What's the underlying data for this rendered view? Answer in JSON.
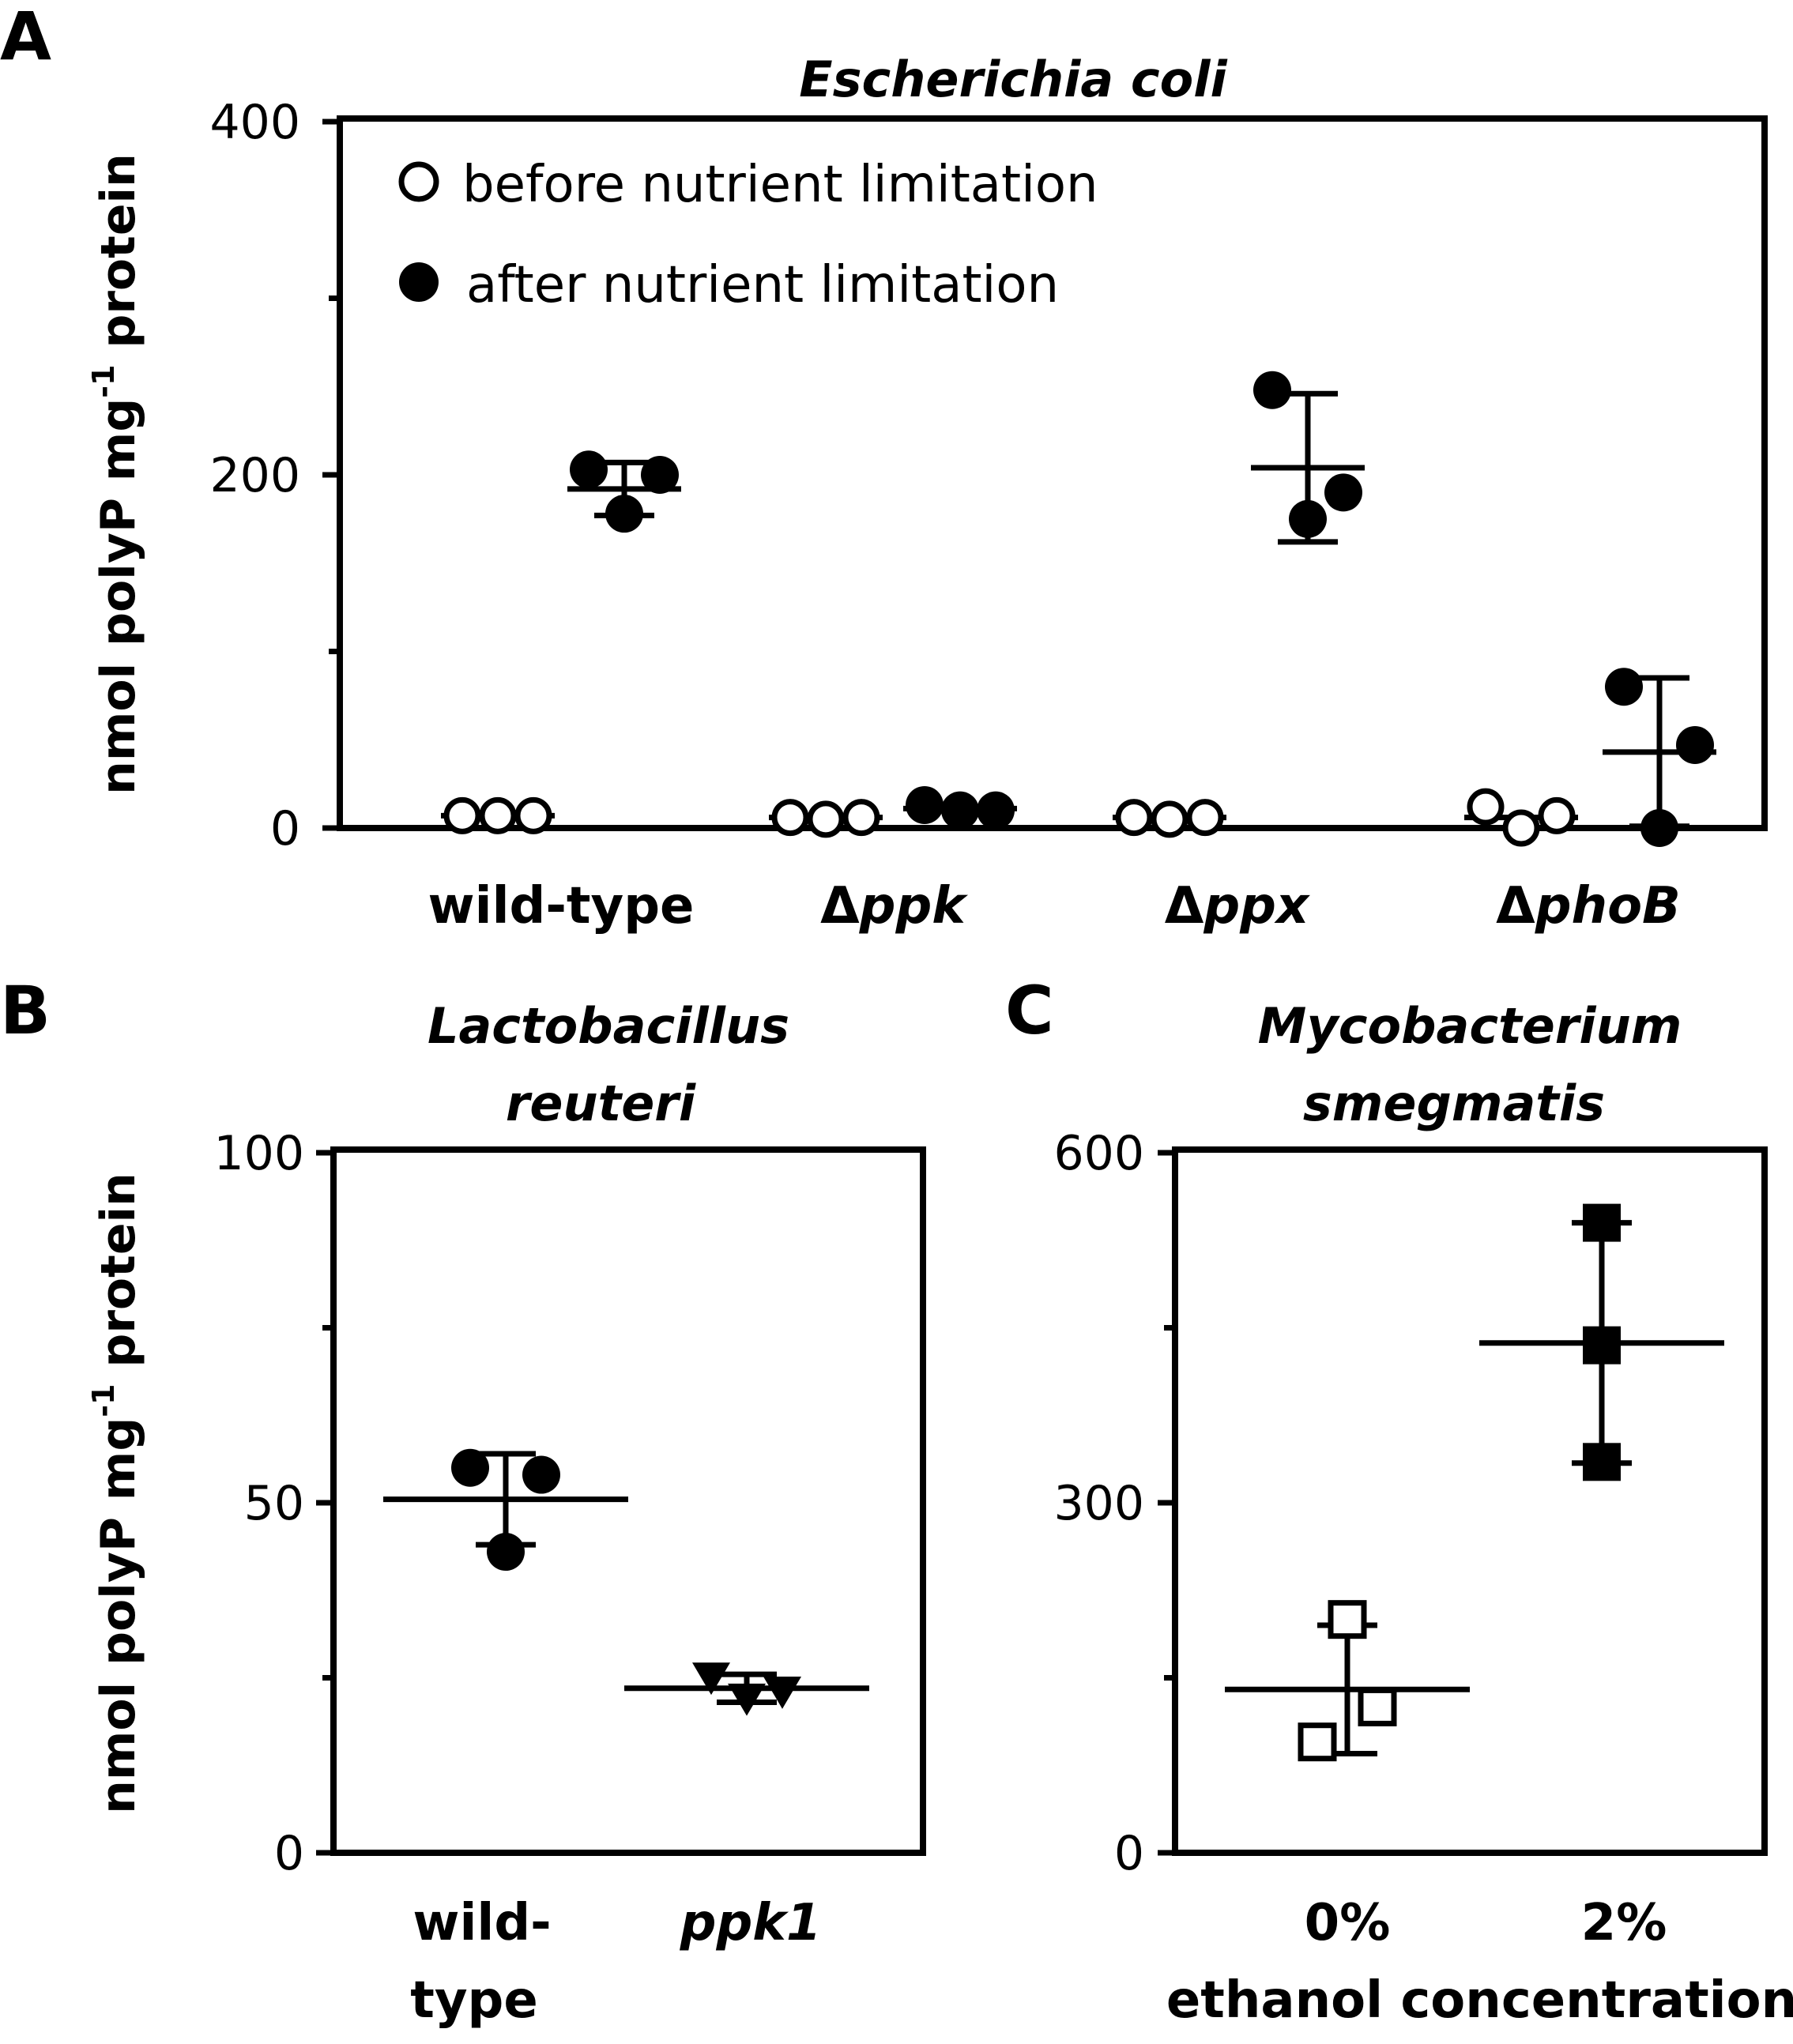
{
  "chart_data": [
    {
      "panel": "A",
      "type": "scatter",
      "title": "Escherichia coli",
      "ylabel": "nmol polyP mg-1 protein",
      "ylabel_parts": {
        "pre": "nmol polyP mg",
        "sup": "-1",
        "post": " protein"
      },
      "ylim": [
        0,
        400
      ],
      "yticks": [
        0,
        200,
        400
      ],
      "categories": [
        "wild-type",
        "Δppk",
        "Δppx",
        "ΔphoB"
      ],
      "category_parts": [
        {
          "pre": "wild-type",
          "ital": ""
        },
        {
          "pre": "Δ",
          "ital": "ppk"
        },
        {
          "pre": "Δ",
          "ital": "ppx"
        },
        {
          "pre": "Δ",
          "ital": "phoB"
        }
      ],
      "legend": {
        "position": "top-left",
        "entries": [
          "before nutrient limitation",
          "after nutrient limitation"
        ]
      },
      "series": [
        {
          "name": "before nutrient limitation",
          "marker": "circle-open",
          "points": [
            [
              7,
              7,
              7
            ],
            [
              6,
              5,
              6
            ],
            [
              6,
              5,
              6
            ],
            [
              12,
              0,
              7
            ]
          ],
          "mean": [
            7,
            6,
            6,
            6
          ],
          "sd": [
            0,
            0,
            0,
            0
          ]
        },
        {
          "name": "after nutrient limitation",
          "marker": "circle-filled",
          "points": [
            [
              203,
              178,
              200
            ],
            [
              13,
              10,
              10
            ],
            [
              248,
              175,
              190
            ],
            [
              80,
              0,
              47
            ]
          ],
          "mean": [
            192,
            11,
            204,
            43
          ],
          "sd": [
            15,
            0,
            42,
            42
          ]
        }
      ]
    },
    {
      "panel": "B",
      "type": "scatter",
      "title": "Lactobacillus reuteri",
      "title_lines": [
        "Lactobacillus",
        "reuteri"
      ],
      "ylabel": "nmol polyP mg-1 protein",
      "ylabel_parts": {
        "pre": "nmol polyP mg",
        "sup": "-1",
        "post": " protein"
      },
      "ylim": [
        0,
        100
      ],
      "yticks": [
        0,
        50,
        100
      ],
      "categories": [
        "wild-type",
        "ppk1"
      ],
      "category_lines": [
        [
          "wild-",
          "type"
        ],
        [
          "ppk1"
        ]
      ],
      "series": [
        {
          "name": "wild-type",
          "marker": "circle-filled",
          "points": [
            55,
            43,
            54
          ],
          "mean": 50.5,
          "sd": 6.5
        },
        {
          "name": "ppk1",
          "marker": "triangle-down-filled",
          "points": [
            25,
            22,
            23
          ],
          "mean": 23.5,
          "sd": 2
        }
      ]
    },
    {
      "panel": "C",
      "type": "scatter",
      "title": "Mycobacterium smegmatis",
      "title_lines": [
        "Mycobacterium",
        "smegmatis"
      ],
      "xlabel": "ethanol concentration",
      "ylim": [
        0,
        600
      ],
      "yticks": [
        0,
        300,
        600
      ],
      "categories": [
        "0%",
        "2%"
      ],
      "series": [
        {
          "name": "0%",
          "marker": "square-open",
          "points": [
            200,
            95,
            125
          ],
          "mean": 140,
          "sd": 55
        },
        {
          "name": "2%",
          "marker": "square-filled",
          "points": [
            540,
            435,
            335
          ],
          "mean": 437,
          "sd": 103
        }
      ]
    }
  ]
}
